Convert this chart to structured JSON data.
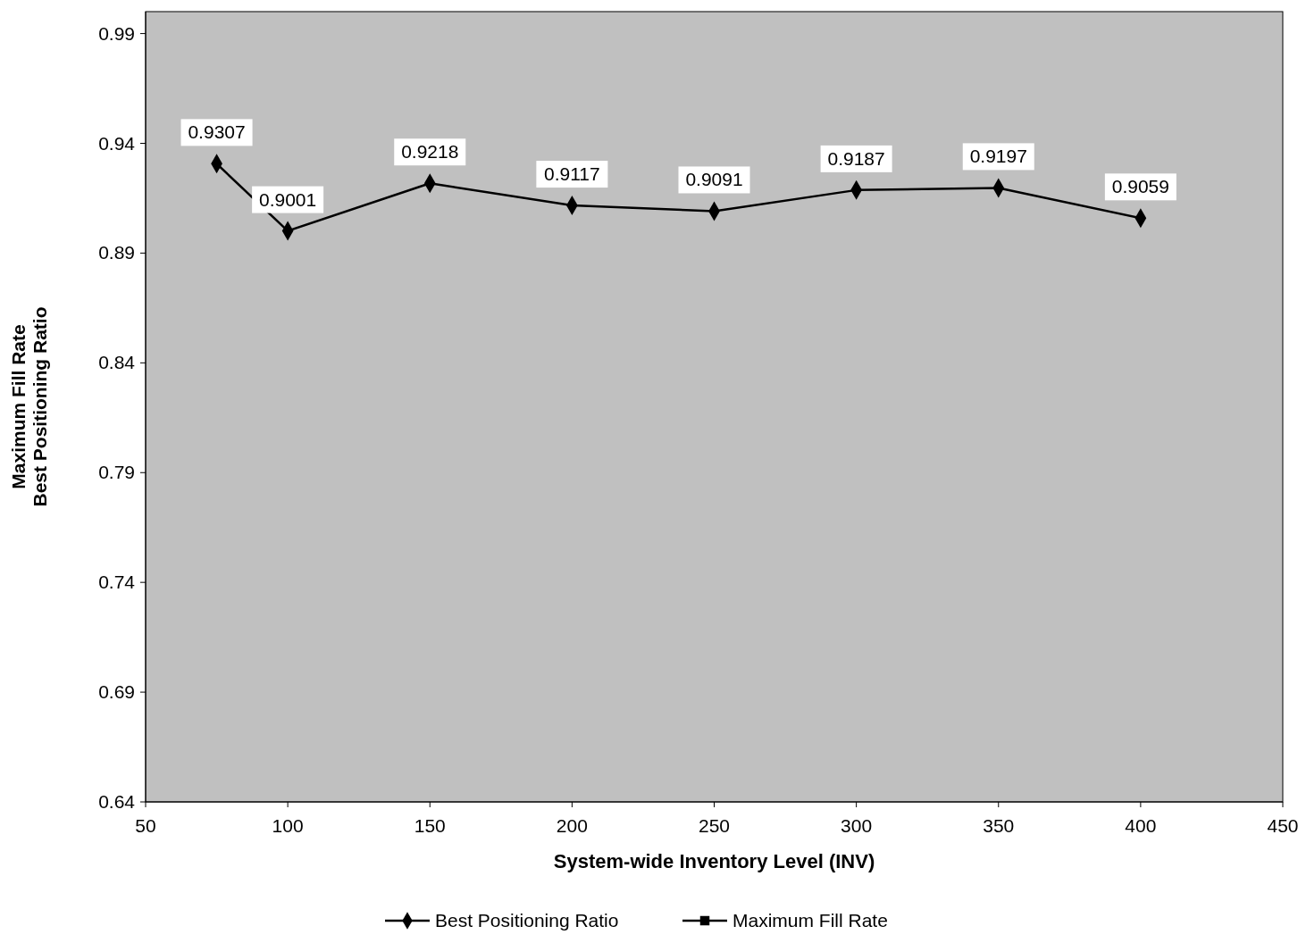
{
  "chart_data": {
    "type": "line",
    "xlabel": "System-wide Inventory Level (INV)",
    "ylabel": "Maximum Fill Rate\nBest Positioning Ratio",
    "x": [
      75,
      100,
      150,
      200,
      250,
      300,
      350,
      400
    ],
    "series": [
      {
        "name": "Best Positioning Ratio",
        "color": "#000000",
        "values": [
          0.9307,
          0.9001,
          0.9218,
          0.9117,
          0.9091,
          0.9187,
          0.9197,
          0.9059
        ]
      },
      {
        "name": "Maximum Fill Rate",
        "color": "#000000",
        "marker": "square",
        "values": [
          null,
          null,
          null,
          null,
          null,
          null,
          null,
          null
        ]
      }
    ],
    "marker": "diamond",
    "data_labels": true,
    "xlim": [
      50,
      450
    ],
    "xticks": [
      50,
      100,
      150,
      200,
      250,
      300,
      350,
      400,
      450
    ],
    "ylim": [
      0.64,
      1.0
    ],
    "yticks": [
      0.64,
      0.69,
      0.74,
      0.79,
      0.84,
      0.89,
      0.94,
      0.99
    ],
    "grid": false,
    "legend": "bottom"
  }
}
